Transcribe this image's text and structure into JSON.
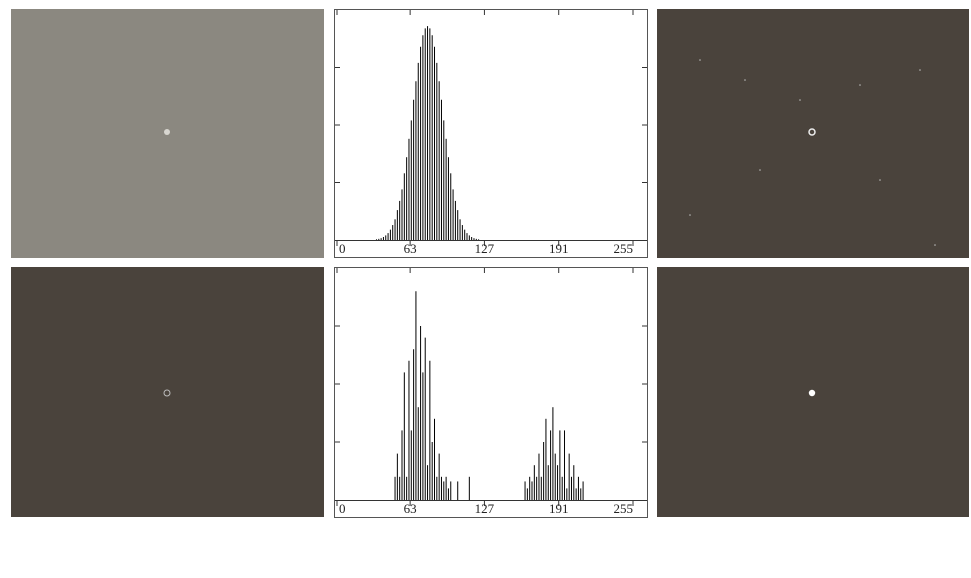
{
  "chart_data": [
    {
      "type": "bar",
      "xlim": [
        0,
        255
      ],
      "xticks": [
        0,
        63,
        127,
        191,
        255
      ],
      "ylim": [
        0,
        1
      ],
      "yticks": [
        0.25,
        0.5,
        0.75
      ],
      "color": "#000000",
      "x": [
        34,
        36,
        38,
        40,
        42,
        44,
        46,
        48,
        50,
        52,
        54,
        56,
        58,
        60,
        62,
        64,
        66,
        68,
        70,
        72,
        74,
        76,
        78,
        80,
        82,
        84,
        86,
        88,
        90,
        92,
        94,
        96,
        98,
        100,
        102,
        104,
        106,
        108,
        110,
        112,
        114,
        116,
        118,
        120,
        122
      ],
      "values": [
        0.003,
        0.005,
        0.008,
        0.013,
        0.02,
        0.03,
        0.045,
        0.065,
        0.09,
        0.13,
        0.17,
        0.22,
        0.29,
        0.36,
        0.44,
        0.52,
        0.61,
        0.69,
        0.77,
        0.84,
        0.89,
        0.92,
        0.93,
        0.92,
        0.89,
        0.84,
        0.77,
        0.69,
        0.61,
        0.52,
        0.44,
        0.36,
        0.29,
        0.22,
        0.17,
        0.13,
        0.09,
        0.065,
        0.045,
        0.03,
        0.02,
        0.013,
        0.008,
        0.005,
        0.003
      ]
    },
    {
      "type": "bar",
      "xlim": [
        0,
        255
      ],
      "xticks": [
        0,
        63,
        127,
        191,
        255
      ],
      "ylim": [
        0,
        1
      ],
      "yticks": [
        0.25,
        0.5,
        0.75
      ],
      "color": "#000000",
      "x": [
        50,
        52,
        54,
        56,
        58,
        60,
        62,
        64,
        66,
        68,
        70,
        72,
        74,
        76,
        78,
        80,
        82,
        84,
        86,
        88,
        90,
        92,
        94,
        96,
        98,
        104,
        114,
        162,
        164,
        166,
        168,
        170,
        172,
        174,
        176,
        178,
        180,
        182,
        184,
        186,
        188,
        190,
        192,
        194,
        196,
        198,
        200,
        202,
        204,
        206,
        208,
        210,
        212
      ],
      "values": [
        0.1,
        0.2,
        0.1,
        0.3,
        0.55,
        0.1,
        0.6,
        0.3,
        0.65,
        0.9,
        0.4,
        0.75,
        0.55,
        0.7,
        0.15,
        0.6,
        0.25,
        0.35,
        0.1,
        0.2,
        0.1,
        0.08,
        0.1,
        0.05,
        0.08,
        0.08,
        0.1,
        0.08,
        0.05,
        0.1,
        0.08,
        0.15,
        0.1,
        0.2,
        0.1,
        0.25,
        0.35,
        0.15,
        0.3,
        0.4,
        0.2,
        0.15,
        0.3,
        0.1,
        0.3,
        0.05,
        0.2,
        0.1,
        0.15,
        0.05,
        0.1,
        0.05,
        0.08
      ]
    }
  ]
}
